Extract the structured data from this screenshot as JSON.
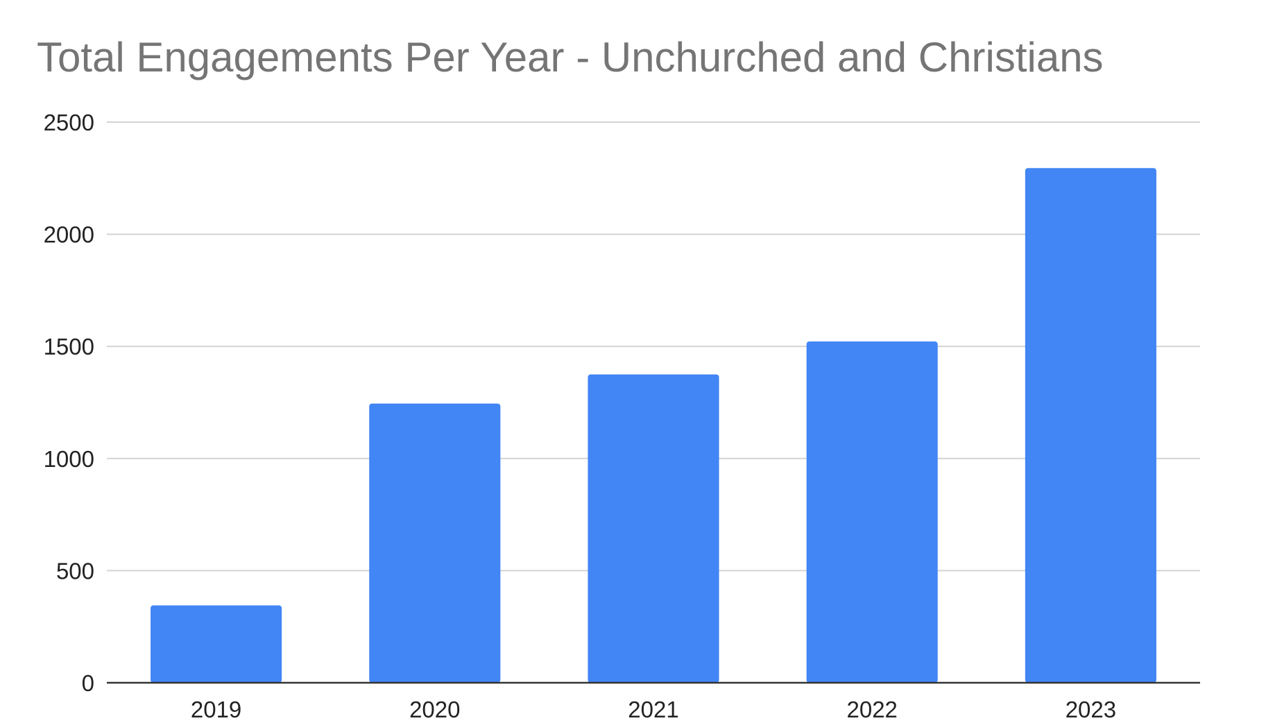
{
  "chart_data": {
    "type": "bar",
    "title": "Total Engagements Per Year - Unchurched and Christians",
    "xlabel": "",
    "ylabel": "",
    "categories": [
      "2019",
      "2020",
      "2021",
      "2022",
      "2023"
    ],
    "values": [
      345,
      1245,
      1375,
      1522,
      2295
    ],
    "ylim": [
      0,
      2500
    ],
    "yticks": [
      0,
      500,
      1000,
      1500,
      2000,
      2500
    ],
    "grid": true,
    "legend": "none",
    "colors": {
      "bar": "#4285f4",
      "grid": "#d3d3d3",
      "axis": "#333333"
    }
  }
}
